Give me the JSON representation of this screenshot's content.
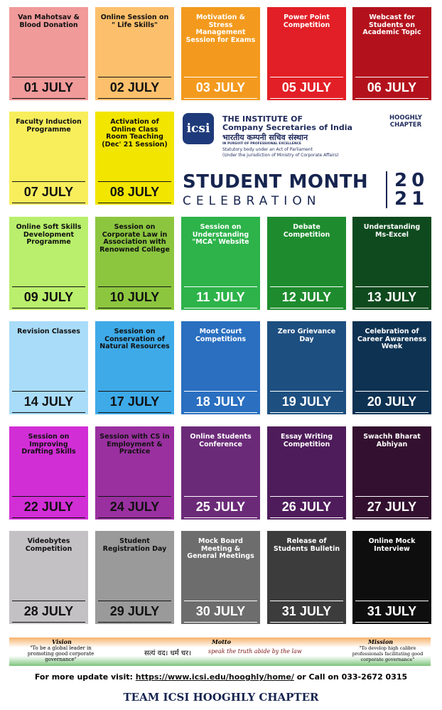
{
  "events": [
    {
      "title": "Van Mahotsav & Blood Donation",
      "date": "01 JULY",
      "color": "#f09a9a",
      "text_color": "#111111"
    },
    {
      "title": "Online Session on \" Life Skills\"",
      "date": "02 JULY",
      "color": "#fcc06c",
      "text_color": "#111111"
    },
    {
      "title": "Motivation & Stress Management Session for Exams",
      "date": "03 JULY",
      "color": "#f39a1e",
      "text_color": "#ffffff"
    },
    {
      "title": "Power Point Competition",
      "date": "05 JULY",
      "color": "#e21f26",
      "text_color": "#ffffff"
    },
    {
      "title": "Webcast for Students on Academic Topic",
      "date": "06 JULY",
      "color": "#b3121c",
      "text_color": "#ffffff"
    },
    {
      "title": "Faculty Induction Programme",
      "date": "07 JULY",
      "color": "#f8ee5c",
      "text_color": "#111111"
    },
    {
      "title": "Activation of Online Class Room Teaching (Dec' 21 Session)",
      "date": "08 JULY",
      "color": "#f2e500",
      "text_color": "#111111"
    },
    {
      "title": "Online Soft Skills Development Programme",
      "date": "09 JULY",
      "color": "#b9ef6c",
      "text_color": "#111111"
    },
    {
      "title": "Session on Corporate Law in Association with Renowned College",
      "date": "10 JULY",
      "color": "#8cc63f",
      "text_color": "#111111"
    },
    {
      "title": "Session on Understanding \"MCA\" Website",
      "date": "11 JULY",
      "color": "#2db34a",
      "text_color": "#ffffff"
    },
    {
      "title": "Debate Competition",
      "date": "12 JULY",
      "color": "#1e8c2e",
      "text_color": "#ffffff"
    },
    {
      "title": "Understanding Ms-Excel",
      "date": "13 JULY",
      "color": "#0f4a1e",
      "text_color": "#ffffff"
    },
    {
      "title": "Revision Classes",
      "date": "14 JULY",
      "color": "#a9dcf8",
      "text_color": "#111111"
    },
    {
      "title": "Session on Conservation of Natural Resources",
      "date": "17 JULY",
      "color": "#3eaae8",
      "text_color": "#111111"
    },
    {
      "title": "Moot Court Competitions",
      "date": "18 JULY",
      "color": "#2a6fc0",
      "text_color": "#ffffff"
    },
    {
      "title": "Zero Grievance Day",
      "date": "19 JULY",
      "color": "#1d4f80",
      "text_color": "#ffffff"
    },
    {
      "title": "Celebration of Career Awareness Week",
      "date": "20 JULY",
      "color": "#0e3252",
      "text_color": "#ffffff"
    },
    {
      "title": "Session on Improving Drafting Skills",
      "date": "22 JULY",
      "color": "#d22ed6",
      "text_color": "#111111"
    },
    {
      "title": "Session with CS in Employment & Practice",
      "date": "24 JULY",
      "color": "#9a30a0",
      "text_color": "#111111"
    },
    {
      "title": "Online Students Conference",
      "date": "25 JULY",
      "color": "#6b2a78",
      "text_color": "#ffffff"
    },
    {
      "title": "Essay Writing Competition",
      "date": "26 JULY",
      "color": "#4e1c5a",
      "text_color": "#ffffff"
    },
    {
      "title": "Swachh Bharat Abhiyan",
      "date": "27 JULY",
      "color": "#33102f",
      "text_color": "#ffffff"
    },
    {
      "title": "Videobytes Competition",
      "date": "28 JULY",
      "color": "#c3c1c4",
      "text_color": "#111111"
    },
    {
      "title": "Student Registration Day",
      "date": "29 JULY",
      "color": "#9a9a9a",
      "text_color": "#111111"
    },
    {
      "title": "Mock Board Meeting & General Meetings",
      "date": "30 JULY",
      "color": "#6d6d6d",
      "text_color": "#ffffff"
    },
    {
      "title": "Release of Students Bulletin",
      "date": "31 JULY",
      "color": "#3c3c3c",
      "text_color": "#ffffff"
    },
    {
      "title": "Online Mock Interview",
      "date": "31 JULY",
      "color": "#0e0e0e",
      "text_color": "#ffffff"
    }
  ],
  "header": {
    "logo": "icsi",
    "line1": "THE INSTITUTE OF",
    "line2": "Company Secretaries of India",
    "hindi": "भारतीय कम्पनी सचिव संस्थान",
    "tagline": "IN PURSUIT OF PROFESSIONAL EXCELLENCE",
    "statutory": "Statutory body under an Act of Parliament",
    "jurisdiction": "(Under the jurisdiction of Ministry of Corporate Affairs)",
    "chapter": "HOOGHLY CHAPTER",
    "title": "STUDENT MONTH",
    "subtitle": "CELEBRATION",
    "year_top": "20",
    "year_bottom": "21"
  },
  "banner": {
    "vision_label": "Vision",
    "vision": "\"To be a global leader in promoting good corporate governance\"",
    "motto_label": "Motto",
    "motto_hindi": "सत्यं वद। धर्मं चर।",
    "motto": "speak the truth abide by the law",
    "mission_label": "Mission",
    "mission": "\"To develop high calibre professionals facilitating good corporate governance\""
  },
  "footer": {
    "prefix": "For more update visit:",
    "link": "https://www.icsi.edu/hooghly/home/",
    "suffix": "or Call on 033-2672 0315",
    "team": "TEAM ICSI HOOGHLY CHAPTER"
  }
}
